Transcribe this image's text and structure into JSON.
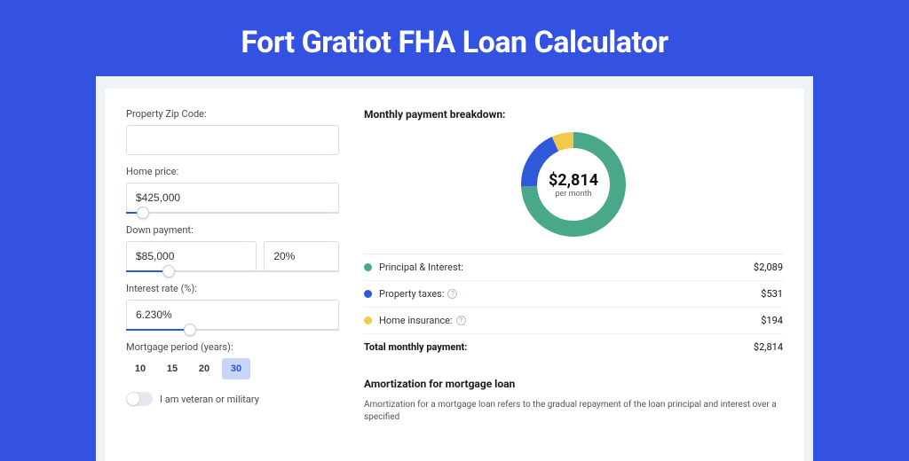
{
  "page": {
    "title": "Fort Gratiot FHA Loan Calculator",
    "background_color": "#3452e1",
    "card_background": "#ffffff",
    "wrap_background": "#eff2f7"
  },
  "form": {
    "zip": {
      "label": "Property Zip Code:",
      "value": ""
    },
    "home_price": {
      "label": "Home price:",
      "value": "$425,000",
      "slider_fill_pct": 8,
      "slider_fill_color": "#2e59d9"
    },
    "down_payment": {
      "label": "Down payment:",
      "amount": "$85,000",
      "percent": "20%",
      "slider_fill_pct": 20,
      "slider_fill_color": "#2e59d9"
    },
    "interest": {
      "label": "Interest rate (%):",
      "value": "6.230%",
      "slider_fill_pct": 30,
      "slider_fill_color": "#2e59d9"
    },
    "period": {
      "label": "Mortgage period (years):",
      "options": [
        "10",
        "15",
        "20",
        "30"
      ],
      "selected": "30",
      "selected_bg": "#c7d6f7",
      "selected_color": "#2b52d4"
    },
    "veteran": {
      "label": "I am veteran or military",
      "on": false
    }
  },
  "breakdown": {
    "title": "Monthly payment breakdown:",
    "donut": {
      "center_amount": "$2,814",
      "center_sub": "per month",
      "segments": [
        {
          "key": "principal",
          "pct": 74.2,
          "color": "#49a88a"
        },
        {
          "key": "taxes",
          "pct": 18.9,
          "color": "#2e59d9"
        },
        {
          "key": "insurance",
          "pct": 6.9,
          "color": "#f2c94c"
        }
      ],
      "stroke_width": 18,
      "radius": 50
    },
    "rows": [
      {
        "label": "Principal & Interest:",
        "value": "$2,089",
        "color": "#49a88a",
        "info": false
      },
      {
        "label": "Property taxes:",
        "value": "$531",
        "color": "#2e59d9",
        "info": true
      },
      {
        "label": "Home insurance:",
        "value": "$194",
        "color": "#f2c94c",
        "info": true
      }
    ],
    "total": {
      "label": "Total monthly payment:",
      "value": "$2,814"
    }
  },
  "amortization": {
    "title": "Amortization for mortgage loan",
    "text": "Amortization for a mortgage loan refers to the gradual repayment of the loan principal and interest over a specified"
  }
}
